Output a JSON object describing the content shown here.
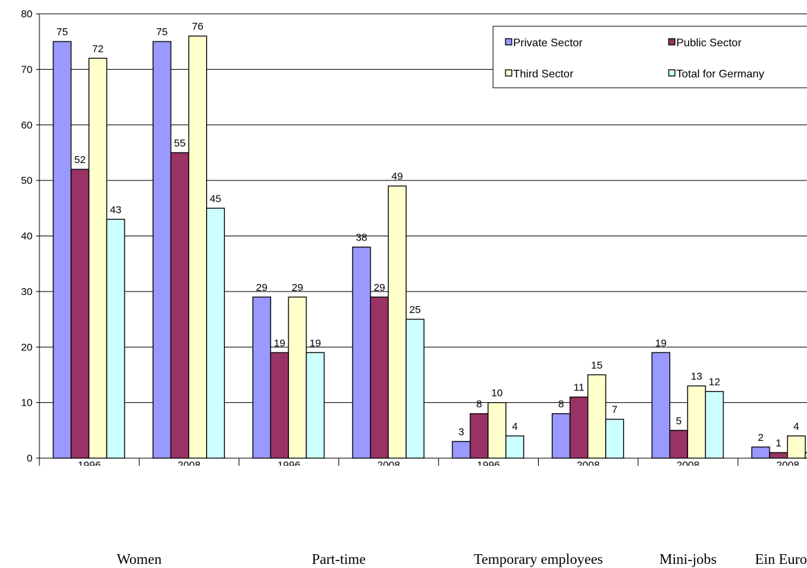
{
  "chart_data": {
    "type": "bar",
    "title": "",
    "xlabel": "",
    "ylabel": "",
    "ylim": [
      0,
      80
    ],
    "yticks": [
      "0",
      "10",
      "20",
      "30",
      "40",
      "50",
      "60",
      "70",
      "80"
    ],
    "grid": true,
    "legend_position": "top-right",
    "categories": [
      "1996",
      "2008",
      "1996",
      "2008",
      "1996",
      "2008",
      "2008",
      "2008"
    ],
    "groups": [
      {
        "label": "Women",
        "span": [
          0,
          1
        ]
      },
      {
        "label": "Part-time",
        "span": [
          2,
          3
        ]
      },
      {
        "label": "Temporary employees",
        "span": [
          4,
          5
        ]
      },
      {
        "label": "Mini-jobs",
        "span": [
          6,
          6
        ]
      },
      {
        "label": "Ein Euro",
        "span": [
          7,
          7
        ]
      }
    ],
    "series": [
      {
        "name": "Private Sector",
        "color": "#9999FF",
        "values": [
          75,
          75,
          29,
          38,
          3,
          8,
          19,
          2
        ]
      },
      {
        "name": "Public Sector",
        "color": "#993366",
        "values": [
          52,
          55,
          19,
          29,
          8,
          11,
          5,
          1
        ]
      },
      {
        "name": "Third Sector",
        "color": "#FFFFCC",
        "values": [
          72,
          76,
          29,
          49,
          10,
          15,
          13,
          4
        ]
      },
      {
        "name": "Total for Germany",
        "color": "#CCFFFF",
        "values": [
          43,
          45,
          19,
          25,
          4,
          7,
          12,
          1
        ]
      }
    ]
  }
}
